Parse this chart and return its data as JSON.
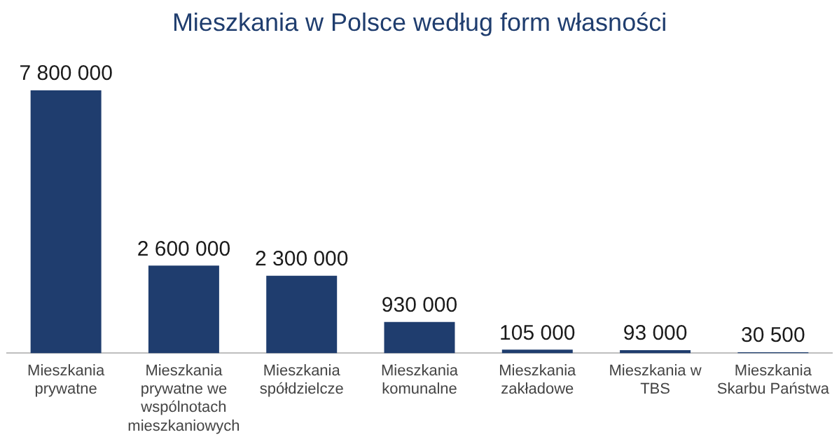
{
  "chart_data": {
    "type": "bar",
    "title": "Mieszkania w Polsce według form własności",
    "categories": [
      "Mieszkania prywatne",
      "Mieszkania prywatne we wspólnotach mieszkaniowych",
      "Mieszkania spółdzielcze",
      "Mieszkania komunalne",
      "Mieszkania zakładowe",
      "Mieszkania w TBS",
      "Mieszkania Skarbu Państwa"
    ],
    "values": [
      7800000,
      2600000,
      2300000,
      930000,
      105000,
      93000,
      30500
    ],
    "value_labels": [
      "7 800 000",
      "2 600 000",
      "2 300 000",
      "930 000",
      "105 000",
      "93 000",
      "30 500"
    ],
    "color": "#1f3d6e",
    "grid": false,
    "legend": false
  }
}
